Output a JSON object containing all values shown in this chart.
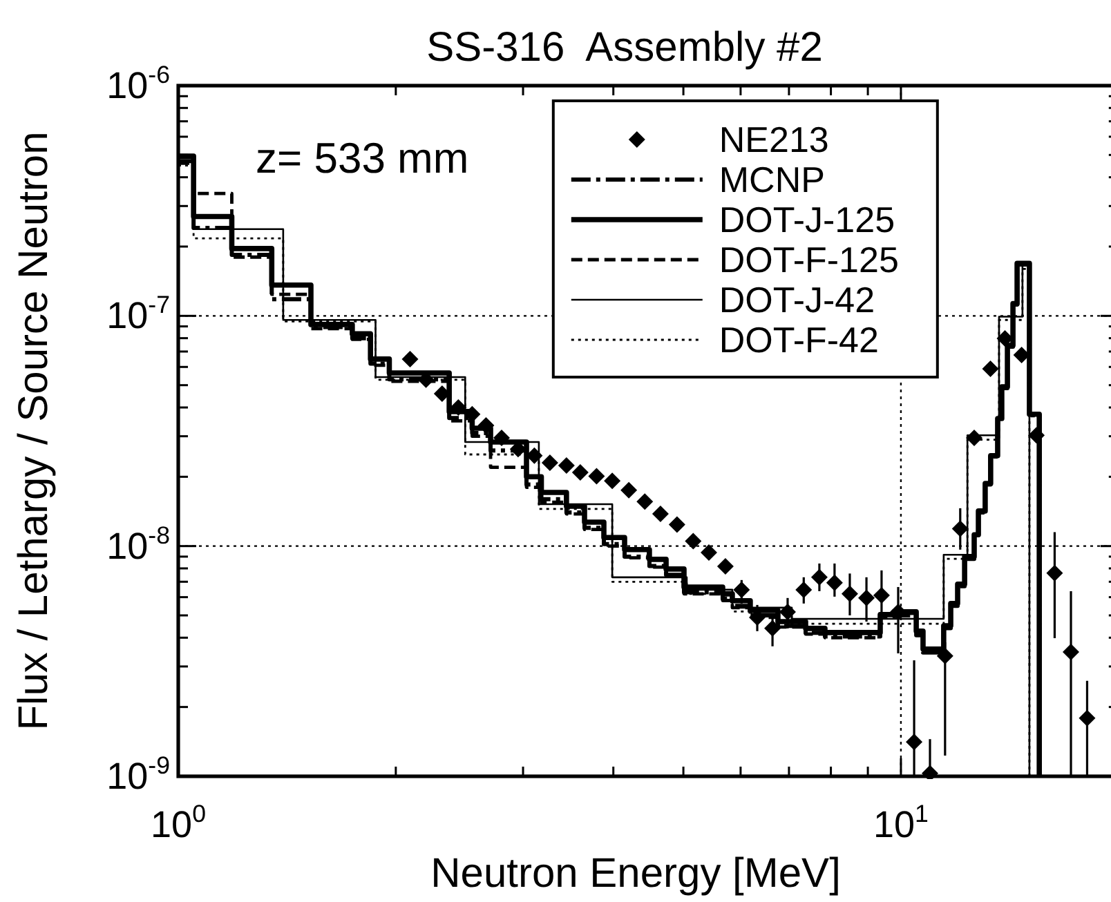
{
  "chart_data": {
    "type": "step",
    "title": "SS-316  Assembly #2",
    "xlabel": "Neutron Energy [MeV]",
    "ylabel": "Flux / Lethargy / Source Neutron",
    "log": "xy",
    "xlim": [
      1,
      20
    ],
    "ylim": [
      1e-09,
      1e-06
    ],
    "xticks": [
      {
        "value": 1,
        "label": "10$^{0}$"
      },
      {
        "value": 2,
        "label": null
      },
      {
        "value": 3,
        "label": null
      },
      {
        "value": 4,
        "label": null
      },
      {
        "value": 5,
        "label": null
      },
      {
        "value": 6,
        "label": null
      },
      {
        "value": 7,
        "label": null
      },
      {
        "value": 8,
        "label": null
      },
      {
        "value": 9,
        "label": null
      },
      {
        "value": 10,
        "label": "10$^{1}$"
      }
    ],
    "yticks": [
      {
        "value": 1e-09,
        "label": "10$^{-9}$"
      },
      {
        "value": 2e-09,
        "label": null
      },
      {
        "value": 3e-09,
        "label": null
      },
      {
        "value": 4e-09,
        "label": null
      },
      {
        "value": 5e-09,
        "label": null
      },
      {
        "value": 6e-09,
        "label": null
      },
      {
        "value": 7e-09,
        "label": null
      },
      {
        "value": 8e-09,
        "label": null
      },
      {
        "value": 9e-09,
        "label": null
      },
      {
        "value": 1e-08,
        "label": "10$^{-8}$"
      },
      {
        "value": 2e-08,
        "label": null
      },
      {
        "value": 3e-08,
        "label": null
      },
      {
        "value": 4e-08,
        "label": null
      },
      {
        "value": 5e-08,
        "label": null
      },
      {
        "value": 6e-08,
        "label": null
      },
      {
        "value": 7e-08,
        "label": null
      },
      {
        "value": 8e-08,
        "label": null
      },
      {
        "value": 9e-08,
        "label": null
      },
      {
        "value": 1e-07,
        "label": "10$^{-7}$"
      },
      {
        "value": 2e-07,
        "label": null
      },
      {
        "value": 3e-07,
        "label": null
      },
      {
        "value": 4e-07,
        "label": null
      },
      {
        "value": 5e-07,
        "label": null
      },
      {
        "value": 6e-07,
        "label": null
      },
      {
        "value": 7e-07,
        "label": null
      },
      {
        "value": 8e-07,
        "label": null
      },
      {
        "value": 9e-07,
        "label": null
      },
      {
        "value": 1e-06,
        "label": "10$^{-6}$"
      }
    ],
    "grid": true,
    "legend": "top right",
    "annotations": [
      "z= 533 mm"
    ],
    "series": [
      {
        "name": "NE213",
        "type": "scatter",
        "marker": "diamond",
        "color": "#000000",
        "x": [
          2.093,
          2.202,
          2.318,
          2.441,
          2.551,
          2.666,
          2.802,
          2.953,
          3.11,
          3.268,
          3.445,
          3.6,
          3.792,
          3.986,
          4.202,
          4.422,
          4.648,
          4.9,
          5.159,
          5.423,
          5.717,
          6.019,
          6.327,
          6.642,
          6.97,
          7.337,
          7.712,
          8.094,
          8.497,
          8.96,
          9.402,
          9.913,
          10.43,
          10.97,
          11.51,
          12.08,
          12.63,
          13.3,
          13.93,
          14.69,
          15.4,
          16.32,
          17.19,
          18.1
        ],
        "values": [
          6.49e-08,
          5.28e-08,
          4.59e-08,
          4e-08,
          3.74e-08,
          3.34e-08,
          2.95e-08,
          2.64e-08,
          2.47e-08,
          2.3e-08,
          2.24e-08,
          2.09e-08,
          2.01e-08,
          1.92e-08,
          1.75e-08,
          1.56e-08,
          1.38e-08,
          1.24e-08,
          1.05e-08,
          9.38e-09,
          8.17e-09,
          6.46e-09,
          4.9e-09,
          4.39e-09,
          5.18e-09,
          6.46e-09,
          7.32e-09,
          6.93e-09,
          6.2e-09,
          5.95e-09,
          6.11e-09,
          5.18e-09,
          1.41e-09,
          1.03e-09,
          3.33e-09,
          1.19e-08,
          2.95e-08,
          5.89e-08,
          7.98e-08,
          6.76e-08,
          3.03e-08,
          7.63e-09,
          3.47e-09,
          1.79e-09
        ],
        "errors": [
          null,
          null,
          null,
          null,
          null,
          null,
          null,
          null,
          null,
          null,
          null,
          null,
          null,
          null,
          null,
          null,
          null,
          null,
          null,
          null,
          null,
          [
            5.63e-09,
            7.12e-09
          ],
          [
            4.27e-09,
            5.55e-09
          ],
          [
            3.67e-09,
            4.9e-09
          ],
          [
            4.39e-09,
            5.95e-09
          ],
          [
            5.63e-09,
            7.32e-09
          ],
          [
            6.37e-09,
            8.4e-09
          ],
          [
            6.03e-09,
            8.4e-09
          ],
          [
            5e-09,
            7.6e-09
          ],
          [
            4.7e-09,
            7.32e-09
          ],
          [
            5.04e-09,
            7.84e-09
          ],
          [
            3.42e-09,
            6.64e-09
          ],
          [
            1e-09,
            3.19e-09
          ],
          [
            1e-09,
            1.45e-09
          ],
          [
            1.23e-09,
            3.82e-09
          ],
          [
            9.65e-09,
            1.46e-08
          ],
          null,
          null,
          null,
          null,
          null,
          [
            3.98e-09,
            1.15e-08
          ],
          [
            1e-09,
            6.37e-09
          ],
          [
            1e-09,
            2.6e-09
          ]
        ]
      },
      {
        "name": "MCNP",
        "line_style": "dashdot",
        "color": "#000000",
        "x": [
          1,
          1.05,
          1.186,
          1.347,
          1.526,
          1.741,
          1.845,
          1.959,
          2.371,
          2.551,
          2.705,
          3.033,
          3.18,
          3.445,
          3.649,
          3.881,
          4.146,
          4.487,
          4.732,
          5.01,
          5.667,
          5.844,
          6.188,
          6.758,
          7.381,
          7.85,
          9.362,
          9.781,
          10.5,
          10.73,
          11.46,
          11.72,
          11.98,
          12.25,
          12.63,
          12.8,
          13.08,
          13.31,
          13.61,
          13.79,
          14.04,
          14.29,
          14.48,
          15.06,
          15.54
        ],
        "values": [
          4.7e-07,
          2.41e-07,
          1.84e-07,
          1.18e-07,
          8.95e-08,
          8e-08,
          6.2e-08,
          5.3e-08,
          3.6e-08,
          3.1e-08,
          2.6e-08,
          1.85e-08,
          1.6e-08,
          1.4e-08,
          1.2e-08,
          1.02e-08,
          9e-09,
          8.2e-09,
          7.5e-09,
          6.3e-09,
          5.9e-09,
          5.5e-09,
          5e-09,
          4.5e-09,
          4.2e-09,
          4.05e-09,
          4.9e-09,
          5e-09,
          4.1e-09,
          3.45e-09,
          4.4e-09,
          5.5e-09,
          6.7e-09,
          8.8e-09,
          1.1e-08,
          1.4e-08,
          1.85e-08,
          2.45e-08,
          3.5e-08,
          4.85e-08,
          7.35e-08,
          1.12e-07,
          1.67e-07,
          3.7e-08,
          1e-09
        ]
      },
      {
        "name": "DOT-J-125",
        "line_style": "solid",
        "color": "#000000",
        "x": [
          1,
          1.05,
          1.186,
          1.347,
          1.526,
          1.741,
          1.845,
          1.959,
          2.371,
          2.551,
          2.705,
          3.033,
          3.18,
          3.445,
          3.649,
          3.881,
          4.146,
          4.487,
          4.732,
          5.01,
          5.667,
          5.844,
          6.188,
          6.758,
          7.381,
          7.85,
          9.362,
          9.781,
          10.5,
          10.73,
          11.46,
          11.72,
          11.98,
          12.25,
          12.63,
          12.8,
          13.08,
          13.31,
          13.61,
          13.79,
          14.04,
          14.29,
          14.48,
          15.06,
          15.54
        ],
        "values": [
          4.94e-07,
          2.7e-07,
          1.96e-07,
          1.36e-07,
          9.17e-08,
          8.36e-08,
          6.49e-08,
          5.65e-08,
          3.84e-08,
          3.25e-08,
          2.83e-08,
          2e-08,
          1.71e-08,
          1.49e-08,
          1.27e-08,
          1.09e-08,
          9.65e-09,
          8.76e-09,
          7.95e-09,
          6.64e-09,
          6.2e-09,
          5.79e-09,
          5.25e-09,
          4.7e-09,
          4.39e-09,
          4.21e-09,
          5.04e-09,
          5.18e-09,
          4.27e-09,
          3.57e-09,
          4.51e-09,
          5.63e-09,
          6.83e-09,
          9e-09,
          1.12e-08,
          1.42e-08,
          1.87e-08,
          2.47e-08,
          3.58e-08,
          4.92e-08,
          7.45e-08,
          1.13e-07,
          1.69e-07,
          3.74e-08,
          1e-09
        ]
      },
      {
        "name": "DOT-F-125",
        "line_style": "dashed",
        "color": "#000000",
        "x": [
          1,
          1.05,
          1.186,
          1.347,
          1.526,
          1.741,
          1.845,
          1.959,
          2.371,
          2.551,
          2.705,
          3.033,
          3.18,
          3.445,
          3.649,
          3.881,
          4.146,
          4.487,
          4.732,
          5.01,
          5.667,
          5.844,
          6.188,
          6.758,
          7.381,
          7.85,
          9.362,
          9.781,
          10.5,
          10.73,
          11.46,
          11.72,
          11.98,
          12.25,
          12.63,
          12.8,
          13.08,
          13.31,
          13.61,
          13.79,
          14.04,
          14.29,
          14.48,
          15.06,
          15.54
        ],
        "values": [
          4.6e-07,
          3.4e-07,
          1.8e-07,
          1.24e-07,
          8.8e-08,
          7.9e-08,
          6.1e-08,
          5.2e-08,
          3.5e-08,
          3e-08,
          2.2e-08,
          1.8e-08,
          1.55e-08,
          1.38e-08,
          1.18e-08,
          1e-08,
          8.9e-09,
          8.1e-09,
          7.4e-09,
          6.2e-09,
          5.8e-09,
          5.4e-09,
          4.9e-09,
          4.45e-09,
          4.15e-09,
          4e-09,
          4.95e-09,
          5.1e-09,
          4.2e-09,
          3.5e-09,
          4.45e-09,
          5.55e-09,
          6.8e-09,
          8.9e-09,
          1.11e-08,
          1.41e-08,
          1.86e-08,
          2.46e-08,
          3.55e-08,
          4.9e-08,
          7.4e-08,
          1.12e-07,
          1.68e-07,
          3.72e-08,
          1e-09
        ]
      },
      {
        "name": "DOT-J-42",
        "line_style": "solid",
        "color": "#000000",
        "x": [
          1,
          1.05,
          1.397,
          1.875,
          2.495,
          3.155,
          3.986,
          5.054,
          5.844,
          7.063,
          11.46,
          12.36,
          13.67,
          14.73,
          15.06
        ],
        "values": [
          4.9e-07,
          2.38e-07,
          9.6e-08,
          5.42e-08,
          2.83e-08,
          1.52e-08,
          7.32e-09,
          6.46e-09,
          5.4e-09,
          4.83e-09,
          9.17e-09,
          3.03e-08,
          9.92e-08,
          1.66e-07,
          1e-09
        ]
      },
      {
        "name": "DOT-F-42",
        "line_style": "dotted",
        "color": "#000000",
        "x": [
          1,
          1.05,
          1.397,
          1.875,
          2.495,
          3.155,
          3.986,
          5.054,
          5.844,
          7.063,
          11.46,
          12.36,
          13.67,
          14.73,
          15.06
        ],
        "values": [
          4.5e-07,
          2.17e-07,
          9.46e-08,
          5.28e-08,
          2.5e-08,
          1.45e-08,
          7e-09,
          6.2e-09,
          5.2e-09,
          4.6e-09,
          8.8e-09,
          2.9e-08,
          9.6e-08,
          1.6e-07,
          1e-09
        ]
      }
    ]
  }
}
